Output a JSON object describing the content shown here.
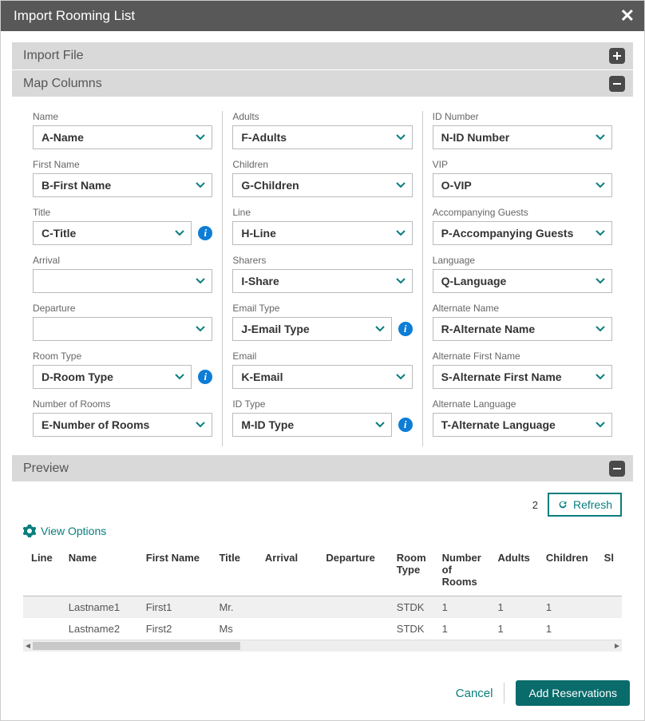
{
  "title": "Import Rooming List",
  "sections": {
    "import_file": "Import File",
    "map_columns": "Map Columns",
    "preview": "Preview"
  },
  "cols": {
    "c1": [
      {
        "label": "Name",
        "value": "A-Name",
        "info": false
      },
      {
        "label": "First Name",
        "value": "B-First Name",
        "info": false
      },
      {
        "label": "Title",
        "value": "C-Title",
        "info": true
      },
      {
        "label": "Arrival",
        "value": "",
        "info": false
      },
      {
        "label": "Departure",
        "value": "",
        "info": false
      },
      {
        "label": "Room Type",
        "value": "D-Room Type",
        "info": true
      },
      {
        "label": "Number of Rooms",
        "value": "E-Number of Rooms",
        "info": false
      }
    ],
    "c2": [
      {
        "label": "Adults",
        "value": "F-Adults",
        "info": false
      },
      {
        "label": "Children",
        "value": "G-Children",
        "info": false
      },
      {
        "label": "Line",
        "value": "H-Line",
        "info": false
      },
      {
        "label": "Sharers",
        "value": "I-Share",
        "info": false
      },
      {
        "label": "Email Type",
        "value": "J-Email Type",
        "info": true
      },
      {
        "label": "Email",
        "value": "K-Email",
        "info": false
      },
      {
        "label": "ID Type",
        "value": "M-ID Type",
        "info": true
      }
    ],
    "c3": [
      {
        "label": "ID Number",
        "value": "N-ID Number",
        "info": false
      },
      {
        "label": "VIP",
        "value": "O-VIP",
        "info": false
      },
      {
        "label": "Accompanying Guests",
        "value": "P-Accompanying Guests",
        "info": false
      },
      {
        "label": "Language",
        "value": "Q-Language",
        "info": false
      },
      {
        "label": "Alternate Name",
        "value": "R-Alternate Name",
        "info": false
      },
      {
        "label": "Alternate First Name",
        "value": "S-Alternate First Name",
        "info": false
      },
      {
        "label": "Alternate Language",
        "value": "T-Alternate Language",
        "info": false
      }
    ]
  },
  "preview": {
    "count": "2",
    "refresh": "Refresh",
    "view_options": "View Options",
    "headers": [
      "Line",
      "Name",
      "First Name",
      "Title",
      "Arrival",
      "Departure",
      "Room Type",
      "Number of Rooms",
      "Adults",
      "Children",
      "Sl"
    ],
    "rows": [
      [
        "",
        "Lastname1",
        "First1",
        "Mr.",
        "",
        "",
        "STDK",
        "1",
        "1",
        "1",
        ""
      ],
      [
        "",
        "Lastname2",
        "First2",
        "Ms",
        "",
        "",
        "STDK",
        "1",
        "1",
        "1",
        ""
      ]
    ]
  },
  "footer": {
    "cancel": "Cancel",
    "add": "Add Reservations"
  },
  "colors": {
    "accent": "#0a7d7d",
    "header_bg": "#585858",
    "section_bg": "#d9d9d9"
  }
}
